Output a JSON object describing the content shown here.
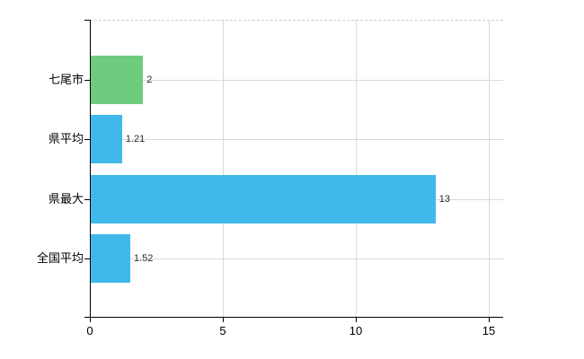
{
  "chart_data": {
    "type": "bar",
    "orientation": "horizontal",
    "title": "",
    "xlabel": "",
    "ylabel": "",
    "categories": [
      "七尾市",
      "県平均",
      "県最大",
      "全国平均"
    ],
    "values": [
      2,
      1.21,
      13,
      1.52
    ],
    "value_labels": [
      "2",
      "1.21",
      "13",
      "1.52"
    ],
    "bar_colors": [
      "#6fcb7e",
      "#41b8ea",
      "#41b8ea",
      "#41b8ea"
    ],
    "x_ticks": [
      {
        "value": 0,
        "label": "0"
      },
      {
        "value": 5,
        "label": "5"
      },
      {
        "value": 10,
        "label": "10"
      },
      {
        "value": 15,
        "label": "15"
      }
    ],
    "xlim": [
      0,
      15
    ],
    "grid": true,
    "legend": false,
    "colors": {
      "bar_green": "#6fcb7e",
      "bar_blue": "#41b8ea",
      "gridline": "#d9d9d9",
      "plot_border_dashed": "#cccccc",
      "axis": "#000000",
      "category_text": "#000000",
      "value_text": "#2b2b2b",
      "background": "#ffffff"
    }
  }
}
